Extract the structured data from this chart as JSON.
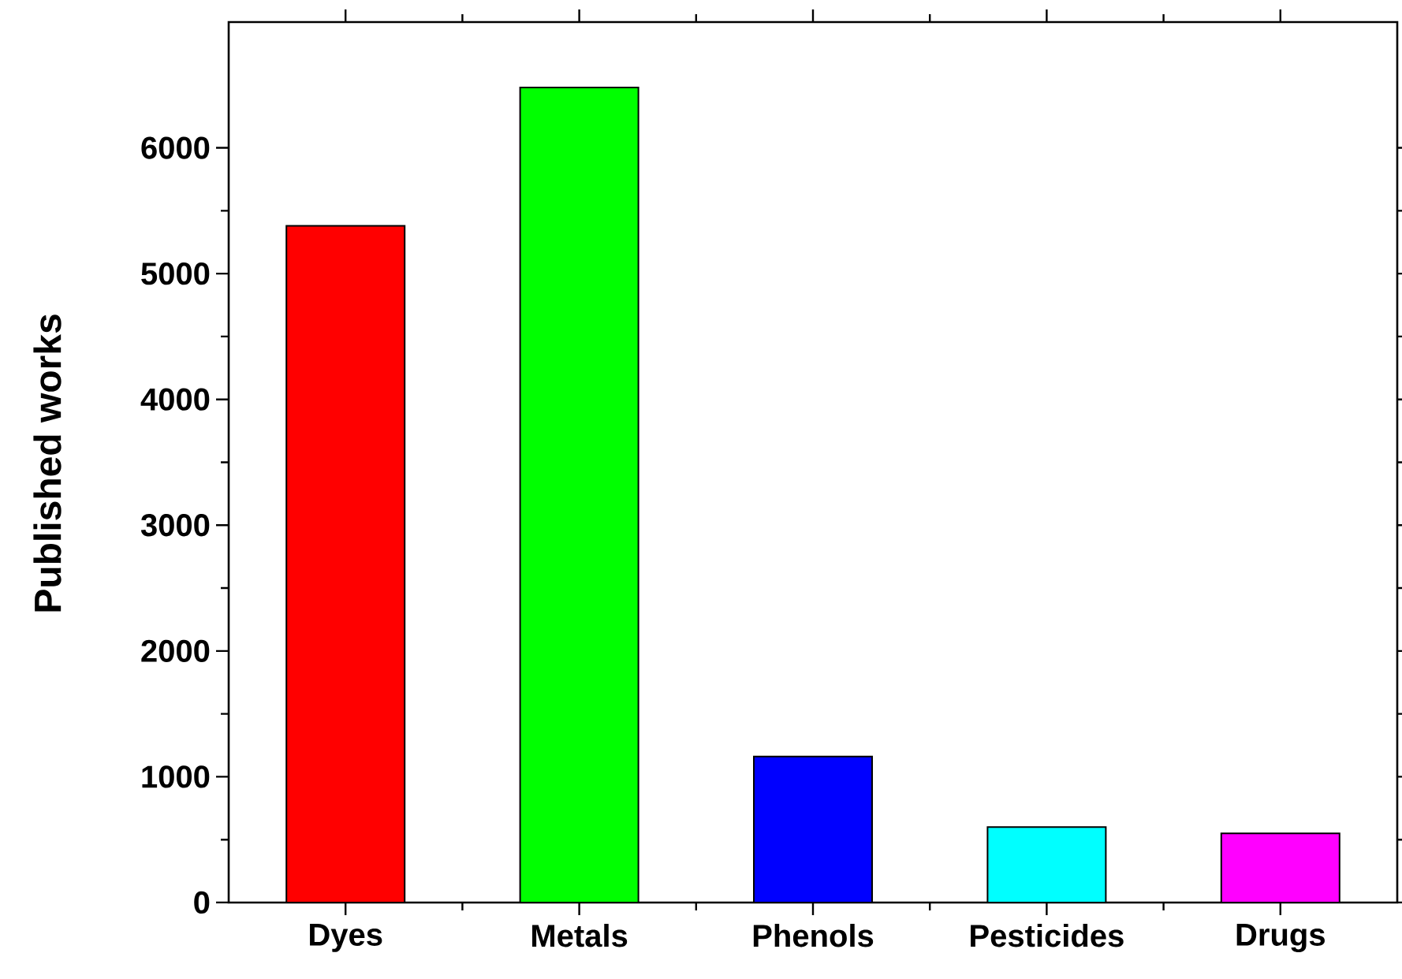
{
  "chart_data": {
    "type": "bar",
    "ylabel": "Published works",
    "categories": [
      "Dyes",
      "Metals",
      "Phenols",
      "Pesticides",
      "Drugs"
    ],
    "values": [
      5380,
      6480,
      1160,
      600,
      550
    ],
    "colors": [
      "#ff0000",
      "#00ff00",
      "#0000ff",
      "#00ffff",
      "#ff00ff"
    ],
    "ylim": [
      0,
      7000
    ],
    "yticks": [
      0,
      1000,
      2000,
      3000,
      4000,
      5000,
      6000
    ]
  }
}
